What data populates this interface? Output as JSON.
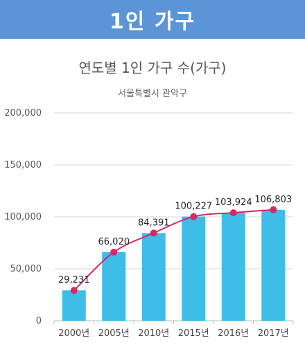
{
  "banner": {
    "title": "1인 가구"
  },
  "chart_data": {
    "type": "bar",
    "title": "연도별 1인 가구 수(가구)",
    "subtitle": "서울특별시 관악구",
    "categories": [
      "2000년",
      "2005년",
      "2010년",
      "2015년",
      "2016년",
      "2017년"
    ],
    "series": [
      {
        "values": [
          29231,
          66020,
          84391,
          100227,
          103924,
          106803
        ],
        "kind": "bar",
        "color": "#3ebde6"
      },
      {
        "values": [
          29231,
          66020,
          84391,
          100227,
          103924,
          106803
        ],
        "kind": "line",
        "color": "#d9266b"
      }
    ],
    "data_labels": [
      "29,231",
      "66,020",
      "84,391",
      "100,227",
      "103,924",
      "106,803"
    ],
    "yticks": [
      "0",
      "50,000",
      "100,000",
      "150,000",
      "200,000"
    ],
    "ytick_values": [
      0,
      50000,
      100000,
      150000,
      200000
    ],
    "ylim": [
      0,
      200000
    ],
    "grid": true,
    "xlabel": "",
    "ylabel": ""
  }
}
